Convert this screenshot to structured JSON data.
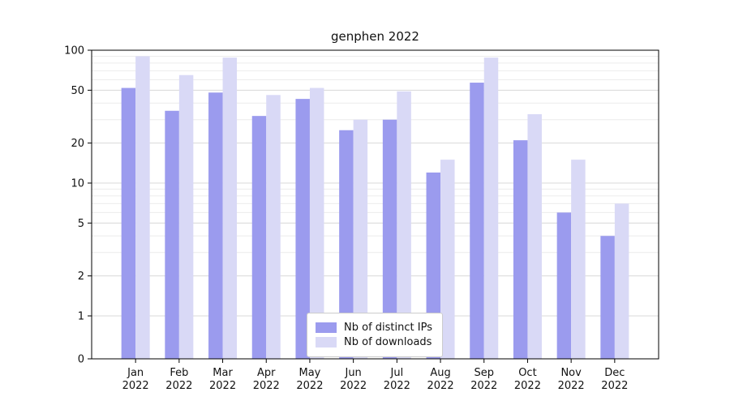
{
  "chart_data": {
    "type": "bar",
    "title": "genphen 2022",
    "categories": [
      "Jan 2022",
      "Feb 2022",
      "Mar 2022",
      "Apr 2022",
      "May 2022",
      "Jun 2022",
      "Jul 2022",
      "Aug 2022",
      "Sep 2022",
      "Oct 2022",
      "Nov 2022",
      "Dec 2022"
    ],
    "series": [
      {
        "name": "Nb of distinct IPs",
        "color": "#9b9bee",
        "values": [
          52,
          35,
          48,
          32,
          43,
          25,
          30,
          12,
          57,
          21,
          6,
          4
        ]
      },
      {
        "name": "Nb of downloads",
        "color": "#d9d9f6",
        "values": [
          90,
          65,
          88,
          46,
          52,
          30,
          49,
          15,
          88,
          33,
          15,
          7
        ]
      }
    ],
    "xlabel": "",
    "ylabel": "",
    "yscale": "symlog",
    "ylim": [
      0,
      100
    ],
    "yticks": [
      0,
      1,
      2,
      5,
      10,
      20,
      50,
      100
    ],
    "minor_yticks": [
      3,
      4,
      6,
      7,
      8,
      9,
      30,
      40,
      60,
      70,
      80,
      90
    ],
    "grid": true,
    "legend_position": "lower center"
  },
  "colors": {
    "grid_major": "#d8d8d8",
    "grid_minor": "#ececec",
    "axis": "#000000",
    "background": "#ffffff"
  }
}
